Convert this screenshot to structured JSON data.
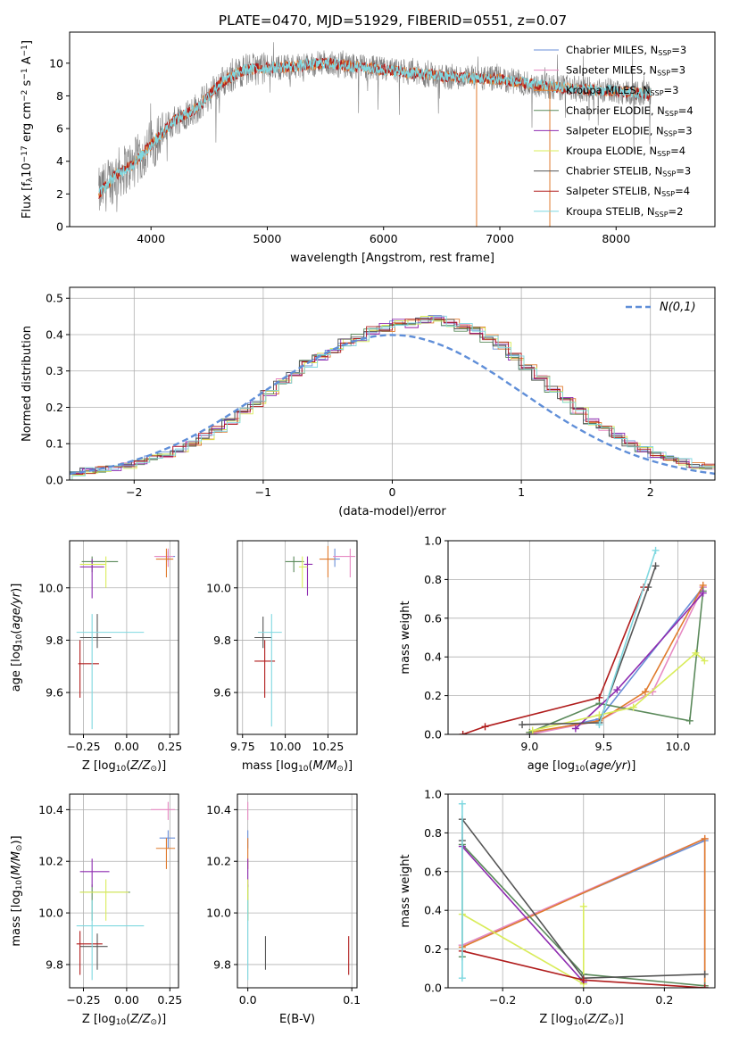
{
  "figure_title": "PLATE=0470, MJD=51929, FIBERID=0551, z=0.07",
  "colors": {
    "Chabrier MILES": "#6a8fd8",
    "Salpeter MILES": "#e78ac3",
    "Kroupa MILES": "#e07b2e",
    "Chabrier ELODIE": "#5b8a5b",
    "Salpeter ELODIE": "#8e2bb0",
    "Kroupa ELODIE": "#d9ec5a",
    "Chabrier STELIB": "#555555",
    "Salpeter STELIB": "#b01c1c",
    "Kroupa STELIB": "#7fd8e0",
    "data": "#808080",
    "normal": "#5f8ed8"
  },
  "chart_data": [
    {
      "id": "spectrum",
      "type": "line",
      "title": "PLATE=0470, MJD=51929, FIBERID=0551, z=0.07",
      "xlabel": "wavelength [Angstrom, rest frame]",
      "ylabel": "Flux [f",
      "xlim": [
        3300,
        8850
      ],
      "ylim": [
        0,
        11.9
      ],
      "xticks": [
        4000,
        5000,
        6000,
        7000,
        8000
      ],
      "yticks": [
        0,
        2,
        4,
        6,
        8,
        10
      ],
      "grid": false,
      "legend_position": "top-right",
      "legend": [
        {
          "model": "Chabrier MILES",
          "label": "Chabrier MILES, N",
          "n": "=3"
        },
        {
          "model": "Salpeter MILES",
          "label": "Salpeter MILES, N",
          "n": "=3"
        },
        {
          "model": "Kroupa MILES",
          "label": "Kroupa MILES, N",
          "n": "=3"
        },
        {
          "model": "Chabrier ELODIE",
          "label": "Chabrier ELODIE, N",
          "n": "=4"
        },
        {
          "model": "Salpeter ELODIE",
          "label": "Salpeter ELODIE, N",
          "n": "=3"
        },
        {
          "model": "Kroupa ELODIE",
          "label": "Kroupa ELODIE, N",
          "n": "=4"
        },
        {
          "model": "Chabrier STELIB",
          "label": "Chabrier STELIB, N",
          "n": "=3"
        },
        {
          "model": "Salpeter STELIB",
          "label": "Salpeter STELIB, N",
          "n": "=4"
        },
        {
          "model": "Kroupa STELIB",
          "label": "Kroupa STELIB, N",
          "n": "=2"
        }
      ],
      "continuum_x": [
        3550,
        3700,
        3850,
        4000,
        4200,
        4400,
        4600,
        4800,
        5000,
        5200,
        5500,
        6000,
        6500,
        7000,
        7400,
        7700,
        8000,
        8300
      ],
      "continuum_y": [
        2.0,
        3.2,
        3.8,
        5.0,
        6.5,
        7.3,
        8.8,
        9.6,
        9.7,
        9.8,
        10.0,
        9.6,
        9.2,
        9.0,
        8.6,
        8.4,
        8.3,
        8.1
      ],
      "data_range": [
        3550,
        8300
      ]
    },
    {
      "id": "residuals",
      "type": "bar",
      "xlabel": "(data-model)/error",
      "ylabel": "Normed distribution",
      "xlim": [
        -2.5,
        2.5
      ],
      "ylim": [
        0,
        0.53
      ],
      "xticks": [
        -2,
        -1,
        0,
        1,
        2
      ],
      "xticklabels": [
        "−2",
        "−1",
        "0",
        "1",
        "2"
      ],
      "yticks": [
        0.0,
        0.1,
        0.2,
        0.3,
        0.4,
        0.5
      ],
      "grid": true,
      "legend_position": "top-right",
      "legend_label": "N(0,1)",
      "bin_width": 0.1,
      "bin_start": -2.5,
      "envelope": [
        0.02,
        0.025,
        0.03,
        0.035,
        0.04,
        0.05,
        0.06,
        0.07,
        0.085,
        0.1,
        0.12,
        0.14,
        0.16,
        0.19,
        0.21,
        0.24,
        0.27,
        0.29,
        0.32,
        0.34,
        0.36,
        0.38,
        0.39,
        0.41,
        0.42,
        0.43,
        0.43,
        0.44,
        0.44,
        0.43,
        0.42,
        0.41,
        0.39,
        0.37,
        0.34,
        0.31,
        0.28,
        0.25,
        0.22,
        0.19,
        0.16,
        0.14,
        0.12,
        0.1,
        0.085,
        0.07,
        0.06,
        0.05,
        0.04,
        0.035
      ],
      "normal_curve": "gaussian mean 0 sigma 1"
    },
    {
      "id": "age_vs_Z",
      "type": "scatter",
      "xlabel": "Z [log",
      "ylabel": "age  [log",
      "xlim": [
        -0.33,
        0.3
      ],
      "ylim": [
        9.44,
        10.18
      ],
      "xticks": [
        -0.25,
        0.0,
        0.25
      ],
      "xticklabels": [
        "−0.25",
        "0.00",
        "0.25"
      ],
      "yticks": [
        9.6,
        9.8,
        10.0
      ],
      "grid": true,
      "points": [
        {
          "model": "Chabrier MILES",
          "x": 0.24,
          "y": 10.12,
          "xerr": [
            0.07,
            0.04
          ],
          "yerr": [
            0.02,
            0.02
          ]
        },
        {
          "model": "Salpeter MILES",
          "x": 0.24,
          "y": 10.12,
          "xerr": [
            0.08,
            0.03
          ],
          "yerr": [
            0.04,
            0.03
          ]
        },
        {
          "model": "Kroupa MILES",
          "x": 0.23,
          "y": 10.11,
          "xerr": [
            0.06,
            0.04
          ],
          "yerr": [
            0.07,
            0.04
          ]
        },
        {
          "model": "Chabrier ELODIE",
          "x": -0.2,
          "y": 10.1,
          "xerr": [
            0.06,
            0.15
          ],
          "yerr": [
            0.04,
            0.02
          ]
        },
        {
          "model": "Salpeter ELODIE",
          "x": -0.2,
          "y": 10.08,
          "xerr": [
            0.07,
            0.07
          ],
          "yerr": [
            0.12,
            0.03
          ]
        },
        {
          "model": "Kroupa ELODIE",
          "x": -0.12,
          "y": 10.09,
          "xerr": [
            0.15,
            0.0
          ],
          "yerr": [
            0.09,
            0.03
          ]
        },
        {
          "model": "Chabrier STELIB",
          "x": -0.17,
          "y": 9.81,
          "xerr": [
            0.1,
            0.08
          ],
          "yerr": [
            0.04,
            0.09
          ]
        },
        {
          "model": "Salpeter STELIB",
          "x": -0.27,
          "y": 9.71,
          "xerr": [
            0.01,
            0.11
          ],
          "yerr": [
            0.13,
            0.09
          ]
        },
        {
          "model": "Kroupa STELIB",
          "x": -0.2,
          "y": 9.83,
          "xerr": [
            0.09,
            0.3
          ],
          "yerr": [
            0.37,
            0.07
          ]
        }
      ]
    },
    {
      "id": "age_vs_mass",
      "type": "scatter",
      "xlabel": "mass [log",
      "ylabel": "",
      "xlim": [
        9.72,
        10.42
      ],
      "ylim": [
        9.44,
        10.18
      ],
      "xticks": [
        9.75,
        10.0,
        10.25
      ],
      "yticks": [
        9.6,
        9.8,
        10.0
      ],
      "grid": true,
      "points": [
        {
          "model": "Chabrier MILES",
          "x": 10.29,
          "y": 10.11,
          "xerr": [
            0.05,
            0.03
          ],
          "yerr": [
            0.03,
            0.04
          ]
        },
        {
          "model": "Salpeter MILES",
          "x": 10.38,
          "y": 10.12,
          "xerr": [
            0.1,
            0.03
          ],
          "yerr": [
            0.08,
            0.03
          ]
        },
        {
          "model": "Kroupa MILES",
          "x": 10.25,
          "y": 10.11,
          "xerr": [
            0.05,
            0.04
          ],
          "yerr": [
            0.07,
            0.05
          ]
        },
        {
          "model": "Chabrier ELODIE",
          "x": 10.05,
          "y": 10.1,
          "xerr": [
            0.05,
            0.06
          ],
          "yerr": [
            0.04,
            0.02
          ]
        },
        {
          "model": "Salpeter ELODIE",
          "x": 10.13,
          "y": 10.09,
          "xerr": [
            0.02,
            0.03
          ],
          "yerr": [
            0.12,
            0.03
          ]
        },
        {
          "model": "Kroupa ELODIE",
          "x": 10.1,
          "y": 10.08,
          "xerr": [
            0.02,
            0.03
          ],
          "yerr": [
            0.08,
            0.04
          ]
        },
        {
          "model": "Chabrier STELIB",
          "x": 9.87,
          "y": 9.81,
          "xerr": [
            0.05,
            0.05
          ],
          "yerr": [
            0.04,
            0.08
          ]
        },
        {
          "model": "Salpeter STELIB",
          "x": 9.88,
          "y": 9.72,
          "xerr": [
            0.06,
            0.06
          ],
          "yerr": [
            0.14,
            0.08
          ]
        },
        {
          "model": "Kroupa STELIB",
          "x": 9.92,
          "y": 9.83,
          "xerr": [
            0.08,
            0.06
          ],
          "yerr": [
            0.36,
            0.07
          ]
        }
      ]
    },
    {
      "id": "mass_weight_vs_age",
      "type": "line",
      "xlabel": "age  [log",
      "ylabel": "mass weight",
      "xlim": [
        8.45,
        10.25
      ],
      "ylim": [
        0,
        1.0
      ],
      "xticks": [
        9.0,
        9.5,
        10.0
      ],
      "yticks": [
        0.0,
        0.2,
        0.4,
        0.6,
        0.8,
        1.0
      ],
      "grid": true,
      "series": [
        {
          "model": "Chabrier MILES",
          "x": [
            9.0,
            9.47,
            10.17
          ],
          "y": [
            0.0,
            0.08,
            0.76
          ]
        },
        {
          "model": "Salpeter MILES",
          "x": [
            9.0,
            9.47,
            9.83,
            10.17
          ],
          "y": [
            0.0,
            0.07,
            0.22,
            0.76
          ]
        },
        {
          "model": "Kroupa MILES",
          "x": [
            9.0,
            9.47,
            9.78,
            10.17
          ],
          "y": [
            0.01,
            0.07,
            0.22,
            0.77
          ]
        },
        {
          "model": "Chabrier ELODIE",
          "x": [
            9.0,
            9.47,
            10.08,
            10.17
          ],
          "y": [
            0.01,
            0.16,
            0.07,
            0.74
          ]
        },
        {
          "model": "Salpeter ELODIE",
          "x": [
            9.31,
            9.59,
            10.17
          ],
          "y": [
            0.03,
            0.23,
            0.73
          ]
        },
        {
          "model": "Kroupa ELODIE",
          "x": [
            9.02,
            9.47,
            9.7,
            10.12,
            10.18
          ],
          "y": [
            0.02,
            0.1,
            0.14,
            0.42,
            0.38
          ]
        },
        {
          "model": "Chabrier STELIB",
          "x": [
            8.95,
            9.47,
            9.8,
            9.85
          ],
          "y": [
            0.05,
            0.06,
            0.76,
            0.87
          ]
        },
        {
          "model": "Salpeter STELIB",
          "x": [
            8.55,
            8.7,
            9.47,
            9.77
          ],
          "y": [
            0.0,
            0.04,
            0.19,
            0.76
          ]
        },
        {
          "model": "Kroupa STELIB",
          "x": [
            9.47,
            9.85
          ],
          "y": [
            0.05,
            0.95
          ]
        }
      ]
    },
    {
      "id": "mass_vs_Z",
      "type": "scatter",
      "xlabel": "Z [log",
      "ylabel": "mass [log",
      "xlim": [
        -0.33,
        0.3
      ],
      "ylim": [
        9.71,
        10.46
      ],
      "xticks": [
        -0.25,
        0.0,
        0.25
      ],
      "xticklabels": [
        "−0.25",
        "0.00",
        "0.25"
      ],
      "yticks": [
        9.8,
        10.0,
        10.2,
        10.4
      ],
      "grid": true,
      "points": [
        {
          "model": "Chabrier MILES",
          "x": 0.24,
          "y": 10.29,
          "xerr": [
            0.05,
            0.04
          ],
          "yerr": [
            0.04,
            0.03
          ]
        },
        {
          "model": "Salpeter MILES",
          "x": 0.24,
          "y": 10.4,
          "xerr": [
            0.1,
            0.04
          ],
          "yerr": [
            0.04,
            0.03
          ]
        },
        {
          "model": "Kroupa MILES",
          "x": 0.23,
          "y": 10.25,
          "xerr": [
            0.06,
            0.05
          ],
          "yerr": [
            0.08,
            0.04
          ]
        },
        {
          "model": "Chabrier ELODIE",
          "x": -0.2,
          "y": 10.08,
          "xerr": [
            0.07,
            0.22
          ],
          "yerr": [
            0.11,
            0.03
          ]
        },
        {
          "model": "Salpeter ELODIE",
          "x": -0.2,
          "y": 10.16,
          "xerr": [
            0.07,
            0.1
          ],
          "yerr": [
            0.06,
            0.05
          ]
        },
        {
          "model": "Kroupa ELODIE",
          "x": -0.12,
          "y": 10.08,
          "xerr": [
            0.15,
            0.13
          ],
          "yerr": [
            0.11,
            0.05
          ]
        },
        {
          "model": "Chabrier STELIB",
          "x": -0.17,
          "y": 9.87,
          "xerr": [
            0.1,
            0.06
          ],
          "yerr": [
            0.09,
            0.05
          ]
        },
        {
          "model": "Salpeter STELIB",
          "x": -0.27,
          "y": 9.88,
          "xerr": [
            0.02,
            0.13
          ],
          "yerr": [
            0.12,
            0.05
          ]
        },
        {
          "model": "Kroupa STELIB",
          "x": -0.2,
          "y": 9.95,
          "xerr": [
            0.09,
            0.3
          ],
          "yerr": [
            0.21,
            0.1
          ]
        }
      ]
    },
    {
      "id": "mass_vs_ebv",
      "type": "scatter",
      "xlabel": "E(B-V)",
      "ylabel": "",
      "xlim": [
        -0.01,
        0.105
      ],
      "ylim": [
        9.71,
        10.46
      ],
      "xticks": [
        0.0,
        0.1
      ],
      "yticks": [
        9.8,
        10.0,
        10.2,
        10.4
      ],
      "grid": true,
      "points": [
        {
          "model": "Chabrier MILES",
          "x": 0.0,
          "y": 10.29,
          "xerr": [
            0,
            0
          ],
          "yerr": [
            0.04,
            0.03
          ]
        },
        {
          "model": "Salpeter MILES",
          "x": 0.0,
          "y": 10.4,
          "xerr": [
            0,
            0
          ],
          "yerr": [
            0.04,
            0.03
          ]
        },
        {
          "model": "Kroupa MILES",
          "x": 0.0,
          "y": 10.25,
          "xerr": [
            0,
            0
          ],
          "yerr": [
            0.08,
            0.04
          ]
        },
        {
          "model": "Chabrier ELODIE",
          "x": 0.0,
          "y": 10.08,
          "xerr": [
            0,
            0
          ],
          "yerr": [
            0.11,
            0.03
          ]
        },
        {
          "model": "Salpeter ELODIE",
          "x": 0.0,
          "y": 10.16,
          "xerr": [
            0,
            0
          ],
          "yerr": [
            0.06,
            0.05
          ]
        },
        {
          "model": "Kroupa ELODIE",
          "x": 0.0,
          "y": 10.08,
          "xerr": [
            0,
            0
          ],
          "yerr": [
            0.11,
            0.05
          ]
        },
        {
          "model": "Chabrier STELIB",
          "x": 0.017,
          "y": 9.85,
          "xerr": [
            0,
            0
          ],
          "yerr": [
            0.07,
            0.06
          ]
        },
        {
          "model": "Salpeter STELIB",
          "x": 0.097,
          "y": 9.84,
          "xerr": [
            0,
            0
          ],
          "yerr": [
            0.08,
            0.07
          ]
        },
        {
          "model": "Kroupa STELIB",
          "x": 0.0,
          "y": 9.95,
          "xerr": [
            0,
            0
          ],
          "yerr": [
            0.21,
            0.1
          ]
        }
      ]
    },
    {
      "id": "mass_weight_vs_Z",
      "type": "line",
      "xlabel": "Z [log",
      "ylabel": "mass weight",
      "xlim": [
        -0.335,
        0.325
      ],
      "ylim": [
        0,
        1.0
      ],
      "xticks": [
        -0.2,
        0.0,
        0.2
      ],
      "xticklabels": [
        "−0.2",
        "0.0",
        "0.2"
      ],
      "yticks": [
        0.0,
        0.2,
        0.4,
        0.6,
        0.8,
        1.0
      ],
      "grid": true,
      "series": [
        {
          "model": "Chabrier MILES",
          "x": [
            -0.3,
            0.3,
            0.3
          ],
          "y": [
            0.22,
            0.76,
            0.0
          ]
        },
        {
          "model": "Salpeter MILES",
          "x": [
            -0.3,
            0.3,
            0.3
          ],
          "y": [
            0.22,
            0.77,
            0.0
          ]
        },
        {
          "model": "Kroupa MILES",
          "x": [
            -0.3,
            0.3,
            0.3
          ],
          "y": [
            0.21,
            0.77,
            0.01
          ]
        },
        {
          "model": "Chabrier ELODIE",
          "x": [
            -0.3,
            -0.3,
            0.0,
            0.3
          ],
          "y": [
            0.16,
            0.74,
            0.07,
            0.01
          ]
        },
        {
          "model": "Salpeter ELODIE",
          "x": [
            -0.3,
            0.0,
            0.0
          ],
          "y": [
            0.73,
            0.03,
            0.04
          ]
        },
        {
          "model": "Kroupa ELODIE",
          "x": [
            -0.3,
            0.0,
            0.0
          ],
          "y": [
            0.38,
            0.02,
            0.42
          ]
        },
        {
          "model": "Chabrier STELIB",
          "x": [
            -0.3,
            -0.3,
            0.0,
            0.3
          ],
          "y": [
            0.76,
            0.87,
            0.05,
            0.07
          ]
        },
        {
          "model": "Salpeter STELIB",
          "x": [
            -0.3,
            0.0,
            0.3
          ],
          "y": [
            0.19,
            0.04,
            0.0
          ]
        },
        {
          "model": "Kroupa STELIB",
          "x": [
            -0.3,
            -0.3
          ],
          "y": [
            0.05,
            0.95
          ]
        }
      ]
    }
  ]
}
